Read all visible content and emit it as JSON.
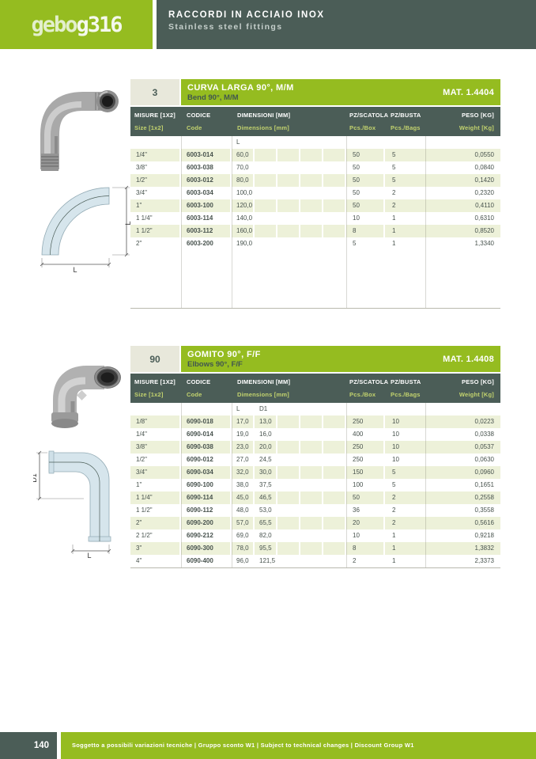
{
  "colors": {
    "brand_green": "#95bc20",
    "dark_slate": "#4b5d57",
    "row_tint": "#edf1d9",
    "ref_bg": "#e8e8db",
    "header_en_text": "#c3d36e"
  },
  "header": {
    "logo_left": "gebo",
    "logo_right": "g316",
    "title_it": "RACCORDI IN ACCIAIO INOX",
    "title_en": "Stainless steel fittings"
  },
  "columns": {
    "misure_it": "MISURE [1X2]",
    "misure_en": "Size [1x2]",
    "codice_it": "CODICE",
    "codice_en": "Code",
    "dim_it": "DIMENSIONI [MM]",
    "dim_en": "Dimensions [mm]",
    "box_it": "PZ/SCATOLA",
    "box_en": "Pcs./Box",
    "bag_it": "PZ/BUSTA",
    "bag_en": "Pcs./Bags",
    "peso_it": "PESO [KG]",
    "peso_en": "Weight [Kg]"
  },
  "tables": [
    {
      "ref": "3",
      "title_it": "CURVA LARGA 90°, M/M",
      "title_en": "Bend 90°, M/M",
      "material": "MAT. 1.4404",
      "dim_cols": [
        "L"
      ],
      "rows": [
        {
          "size": "1/4\"",
          "code": "6003-014",
          "dims": [
            "60,0"
          ],
          "box": "50",
          "bag": "5",
          "weight": "0,0550"
        },
        {
          "size": "3/8\"",
          "code": "6003-038",
          "dims": [
            "70,0"
          ],
          "box": "50",
          "bag": "5",
          "weight": "0,0840"
        },
        {
          "size": "1/2\"",
          "code": "6003-012",
          "dims": [
            "80,0"
          ],
          "box": "50",
          "bag": "5",
          "weight": "0,1420"
        },
        {
          "size": "3/4\"",
          "code": "6003-034",
          "dims": [
            "100,0"
          ],
          "box": "50",
          "bag": "2",
          "weight": "0,2320"
        },
        {
          "size": "1\"",
          "code": "6003-100",
          "dims": [
            "120,0"
          ],
          "box": "50",
          "bag": "2",
          "weight": "0,4110"
        },
        {
          "size": "1 1/4\"",
          "code": "6003-114",
          "dims": [
            "140,0"
          ],
          "box": "10",
          "bag": "1",
          "weight": "0,6310"
        },
        {
          "size": "1 1/2\"",
          "code": "6003-112",
          "dims": [
            "160,0"
          ],
          "box": "8",
          "bag": "1",
          "weight": "0,8520"
        },
        {
          "size": "2\"",
          "code": "6003-200",
          "dims": [
            "190,0"
          ],
          "box": "5",
          "bag": "1",
          "weight": "1,3340"
        }
      ]
    },
    {
      "ref": "90",
      "title_it": "GOMITO 90°, F/F",
      "title_en": "Elbows 90°, F/F",
      "material": "MAT. 1.4408",
      "dim_cols": [
        "L",
        "D1"
      ],
      "rows": [
        {
          "size": "1/8\"",
          "code": "6090-018",
          "dims": [
            "17,0",
            "13,0"
          ],
          "box": "250",
          "bag": "10",
          "weight": "0,0223"
        },
        {
          "size": "1/4\"",
          "code": "6090-014",
          "dims": [
            "19,0",
            "16,0"
          ],
          "box": "400",
          "bag": "10",
          "weight": "0,0338"
        },
        {
          "size": "3/8\"",
          "code": "6090-038",
          "dims": [
            "23,0",
            "20,0"
          ],
          "box": "250",
          "bag": "10",
          "weight": "0,0537"
        },
        {
          "size": "1/2\"",
          "code": "6090-012",
          "dims": [
            "27,0",
            "24,5"
          ],
          "box": "250",
          "bag": "10",
          "weight": "0,0630"
        },
        {
          "size": "3/4\"",
          "code": "6090-034",
          "dims": [
            "32,0",
            "30,0"
          ],
          "box": "150",
          "bag": "5",
          "weight": "0,0960"
        },
        {
          "size": "1\"",
          "code": "6090-100",
          "dims": [
            "38,0",
            "37,5"
          ],
          "box": "100",
          "bag": "5",
          "weight": "0,1651"
        },
        {
          "size": "1 1/4\"",
          "code": "6090-114",
          "dims": [
            "45,0",
            "46,5"
          ],
          "box": "50",
          "bag": "2",
          "weight": "0,2558"
        },
        {
          "size": "1 1/2\"",
          "code": "6090-112",
          "dims": [
            "48,0",
            "53,0"
          ],
          "box": "36",
          "bag": "2",
          "weight": "0,3558"
        },
        {
          "size": "2\"",
          "code": "6090-200",
          "dims": [
            "57,0",
            "65,5"
          ],
          "box": "20",
          "bag": "2",
          "weight": "0,5616"
        },
        {
          "size": "2 1/2\"",
          "code": "6090-212",
          "dims": [
            "69,0",
            "82,0"
          ],
          "box": "10",
          "bag": "1",
          "weight": "0,9218"
        },
        {
          "size": "3\"",
          "code": "6090-300",
          "dims": [
            "78,0",
            "95,5"
          ],
          "box": "8",
          "bag": "1",
          "weight": "1,3832"
        },
        {
          "size": "4\"",
          "code": "6090-400",
          "dims": [
            "96,0",
            "121,5"
          ],
          "box": "2",
          "bag": "1",
          "weight": "2,3373"
        }
      ]
    }
  ],
  "drawings": {
    "bend": {
      "dim_right": "L",
      "dim_bottom": "L"
    },
    "elbow": {
      "dim_left": "D1",
      "dim_bottom": "L"
    }
  },
  "footer": {
    "page": "140",
    "note": "Soggetto a possibili variazioni tecniche  |  Gruppo sconto W1  |  Subject to technical changes  |  Discount Group W1"
  }
}
